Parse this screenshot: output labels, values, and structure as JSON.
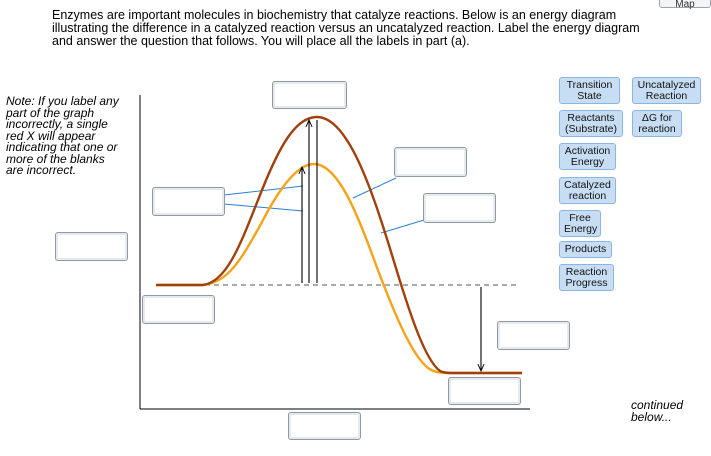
{
  "intro": {
    "line1": "Enzymes are important molecules in biochemistry that catalyze reactions. Below is an energy diagram",
    "line2": "illustrating the difference in a catalyzed reaction versus an uncatalyzed reaction. Label the energy diagram",
    "line3": "and answer the question that follows. You will place all the labels in part (a)."
  },
  "map_button": "Map",
  "note": {
    "line1": "Note: If you label any",
    "line2": "part of the graph",
    "line3": "incorrectly, a single",
    "line4": "red X will appear",
    "line5": "indicating that one or",
    "line6": "more of the blanks",
    "line7": "are incorrect."
  },
  "labels": {
    "transition_state": "Transition\nState",
    "uncatalyzed_reaction": "Uncatalyzed\nReaction",
    "reactants": "Reactants\n(Substrate)",
    "delta_g": "ΔG for\nreaction",
    "activation_energy": "Activation\nEnergy",
    "catalyzed_reaction": "Catalyzed\nreaction",
    "free_energy": "Free\nEnergy",
    "products": "Products",
    "reaction_progress": "Reaction\nProgress"
  },
  "continued": {
    "line1": "continued",
    "line2": "below..."
  },
  "colors": {
    "uncatalyzed_curve": "#a0410d",
    "catalyzed_curve": "#f5a31a",
    "leader_line": "#2a7fd4",
    "chip_fill": "#c7ddf4",
    "chip_border": "#8fb4de"
  }
}
